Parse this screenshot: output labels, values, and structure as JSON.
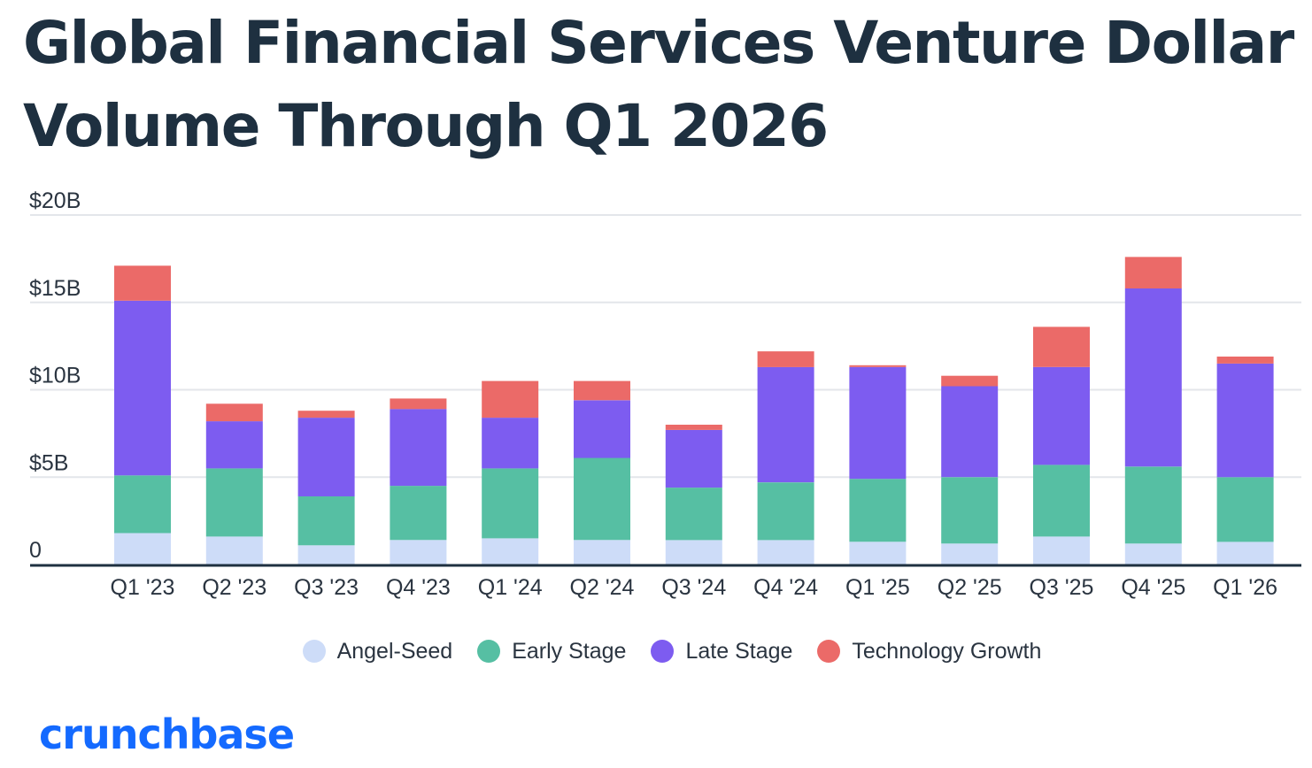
{
  "title": "Global Financial Services Venture Dollar Volume Through Q1 2026",
  "logo_text": "crunchbase",
  "chart_data": {
    "type": "bar",
    "stacked": true,
    "title": "Global Financial Services Venture Dollar Volume Through Q1 2026",
    "xlabel": "",
    "ylabel": "",
    "unit": "$B",
    "ylim": [
      0,
      20
    ],
    "grid": true,
    "legend_position": "bottom",
    "y_ticks": [
      {
        "value": 0,
        "label": "0"
      },
      {
        "value": 5,
        "label": "$5B"
      },
      {
        "value": 10,
        "label": "$10B"
      },
      {
        "value": 15,
        "label": "$15B"
      },
      {
        "value": 20,
        "label": "$20B"
      }
    ],
    "categories": [
      "Q1 '23",
      "Q2 '23",
      "Q3 '23",
      "Q4 '23",
      "Q1 '24",
      "Q2 '24",
      "Q3 '24",
      "Q4 '24",
      "Q1 '25",
      "Q2 '25",
      "Q3 '25",
      "Q4 '25",
      "Q1 '26"
    ],
    "series": [
      {
        "name": "Angel-Seed",
        "color": "#cddcf8",
        "values": [
          1.8,
          1.6,
          1.1,
          1.4,
          1.5,
          1.4,
          1.4,
          1.4,
          1.3,
          1.2,
          1.6,
          1.2,
          1.3
        ]
      },
      {
        "name": "Early Stage",
        "color": "#56bfa3",
        "values": [
          3.3,
          3.9,
          2.8,
          3.1,
          4.0,
          4.7,
          3.0,
          3.3,
          3.6,
          3.8,
          4.1,
          4.4,
          3.7
        ]
      },
      {
        "name": "Late Stage",
        "color": "#7d5cf0",
        "values": [
          10.0,
          2.7,
          4.5,
          4.4,
          2.9,
          3.3,
          3.3,
          6.6,
          6.4,
          5.2,
          5.6,
          10.2,
          6.5
        ]
      },
      {
        "name": "Technology Growth",
        "color": "#eb6a68",
        "values": [
          2.0,
          1.0,
          0.4,
          0.6,
          2.1,
          1.1,
          0.3,
          0.9,
          0.1,
          0.6,
          2.3,
          1.8,
          0.4
        ]
      }
    ]
  },
  "axis_color": "#1e3040",
  "grid_color": "#e3e6ea"
}
